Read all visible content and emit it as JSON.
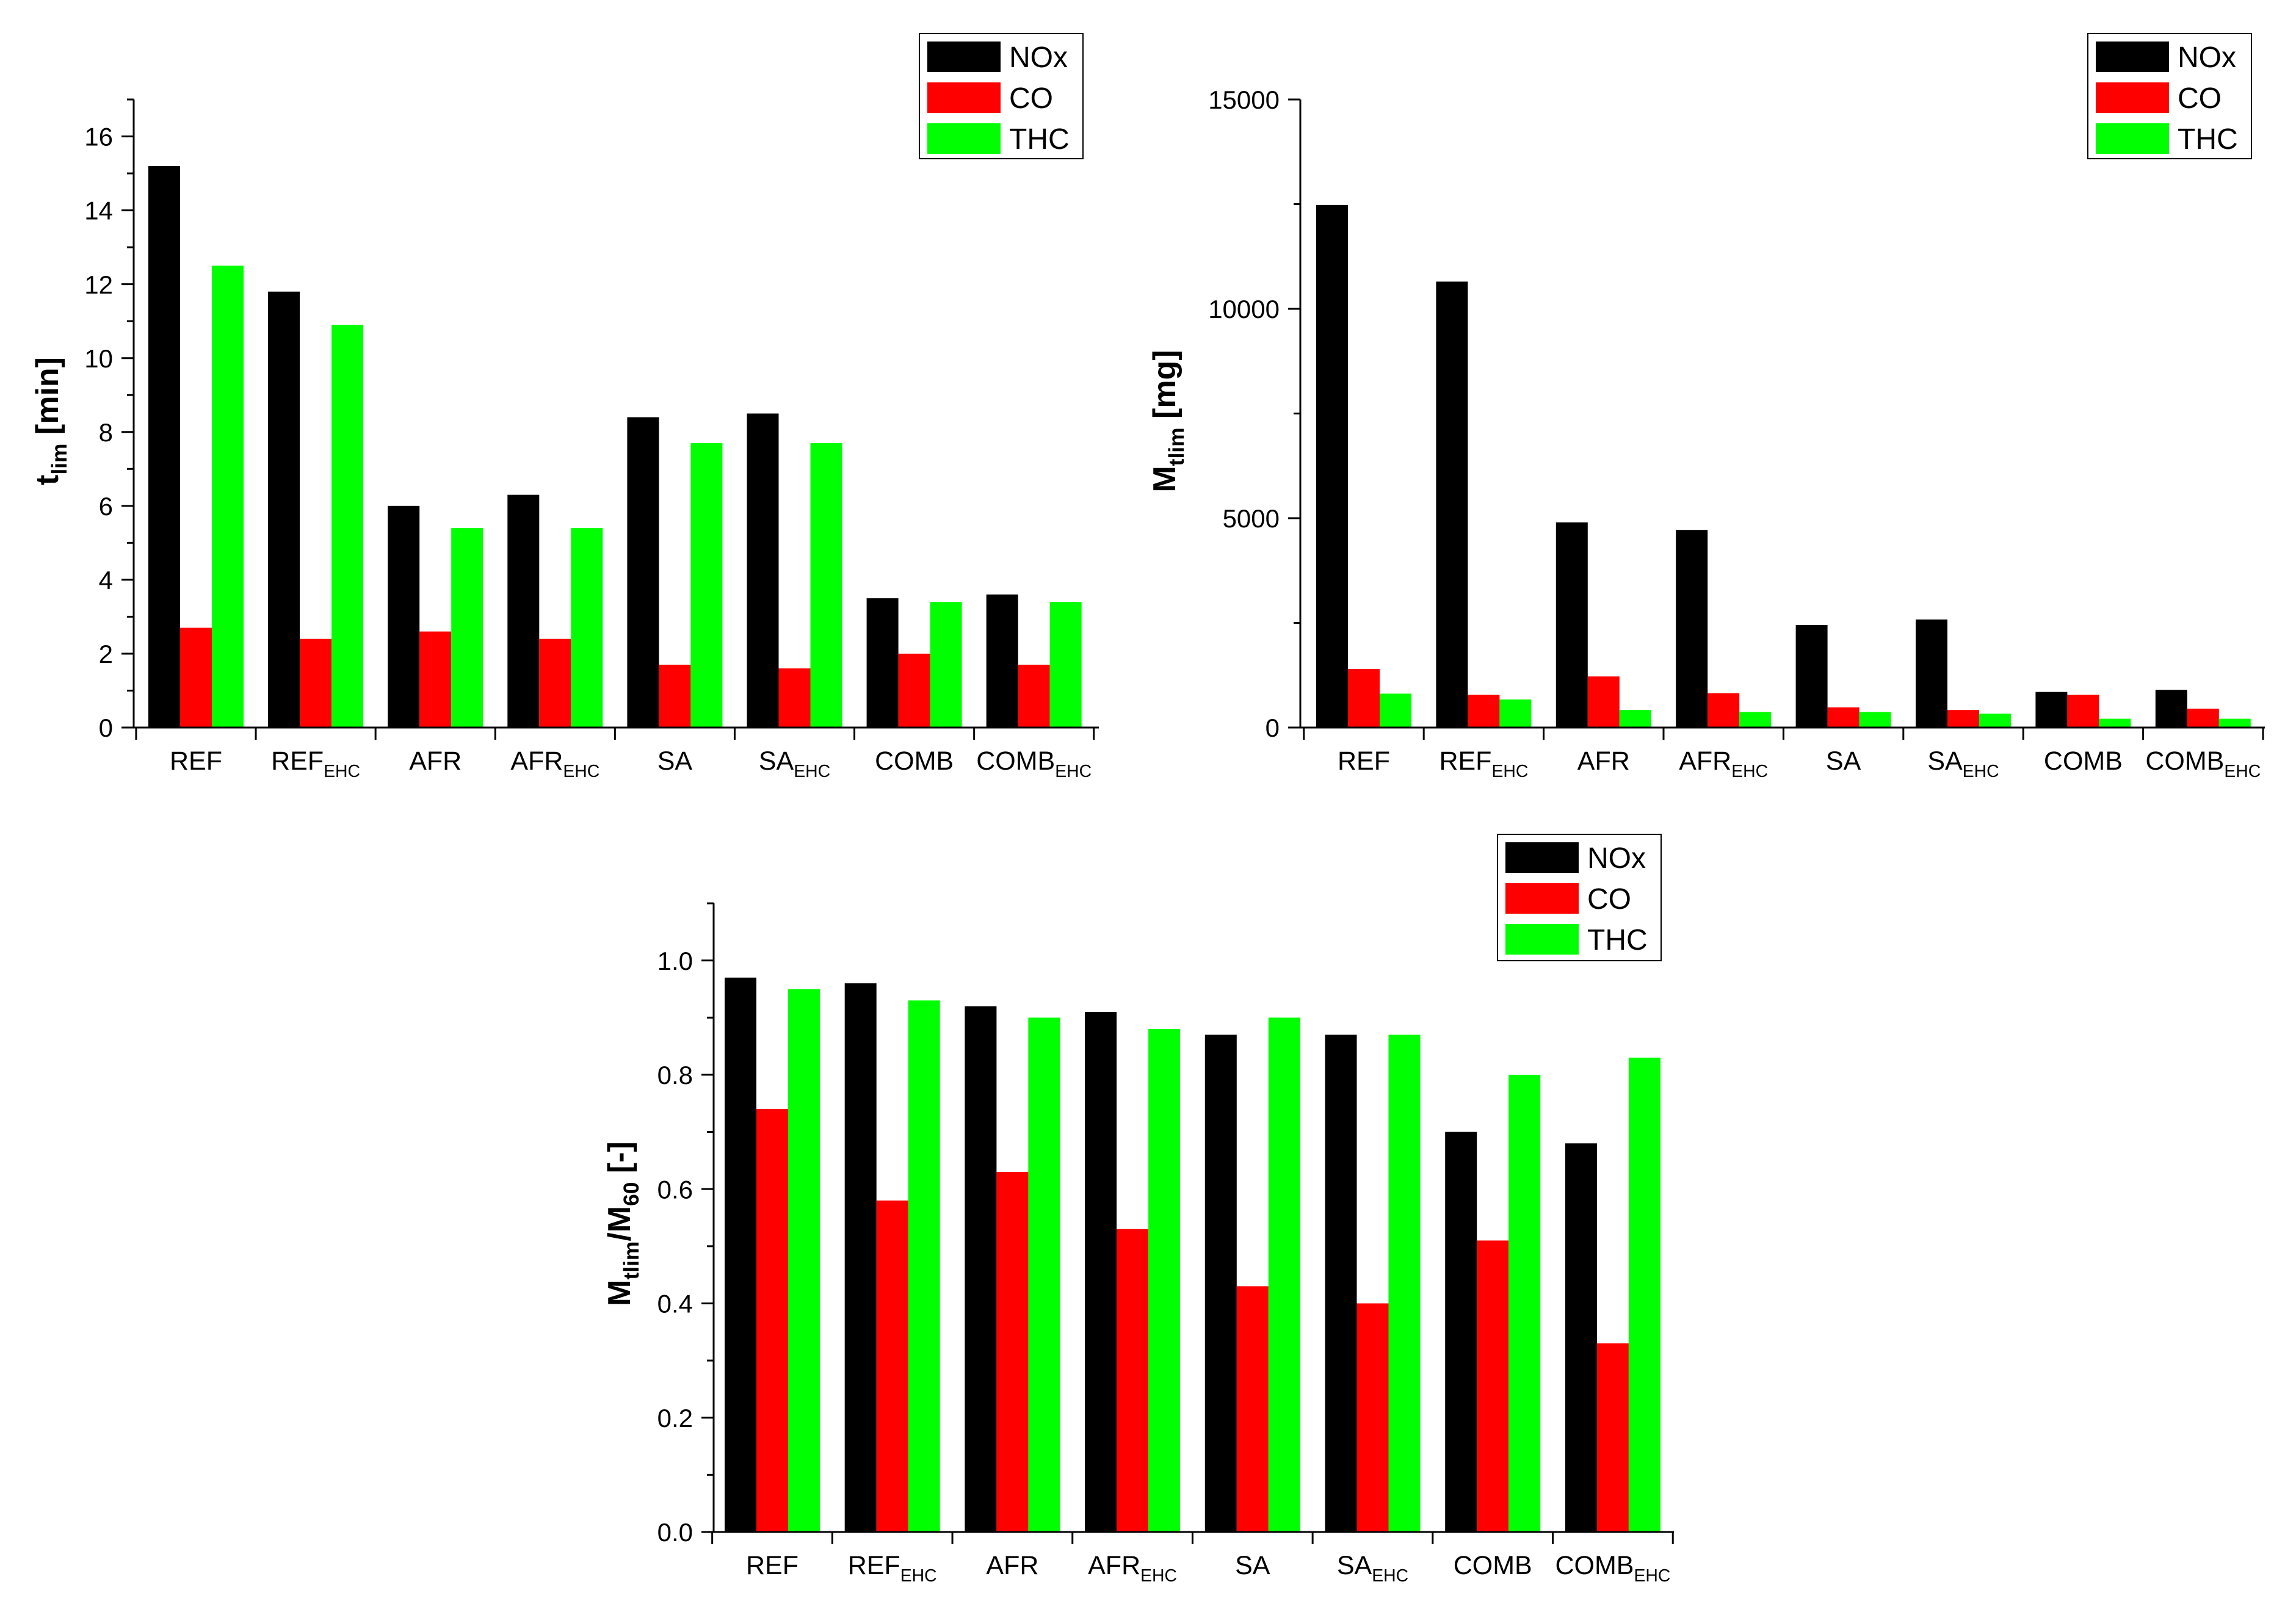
{
  "chart_data": [
    {
      "type": "bar",
      "categories": [
        {
          "base": "REF",
          "sub": ""
        },
        {
          "base": "REF",
          "sub": "EHC"
        },
        {
          "base": "AFR",
          "sub": ""
        },
        {
          "base": "AFR",
          "sub": "EHC"
        },
        {
          "base": "SA",
          "sub": ""
        },
        {
          "base": "SA",
          "sub": "EHC"
        },
        {
          "base": "COMB",
          "sub": ""
        },
        {
          "base": "COMB",
          "sub": "EHC"
        }
      ],
      "series": [
        {
          "name": "NOx",
          "color": "#000000",
          "values": [
            15.2,
            11.8,
            6.0,
            6.3,
            8.4,
            8.5,
            3.5,
            3.6
          ]
        },
        {
          "name": "CO",
          "color": "#ff0000",
          "values": [
            2.7,
            2.4,
            2.6,
            2.4,
            1.7,
            1.6,
            2.0,
            1.7
          ]
        },
        {
          "name": "THC",
          "color": "#00ff00",
          "values": [
            12.5,
            10.9,
            5.4,
            5.4,
            7.7,
            7.7,
            3.4,
            3.4
          ]
        }
      ],
      "ylabel": {
        "parts": [
          {
            "t": "t",
            "sub": false
          },
          {
            "t": "lim",
            "sub": true
          },
          {
            "t": " [min]",
            "sub": false
          }
        ]
      },
      "ylim": [
        0,
        17
      ],
      "yticks": [
        0,
        2,
        4,
        6,
        8,
        10,
        12,
        14,
        16
      ],
      "ytick_labels": [
        "0",
        "2",
        "4",
        "6",
        "8",
        "10",
        "12",
        "14",
        "16"
      ],
      "legend": "top-right",
      "grid": false
    },
    {
      "type": "bar",
      "categories": [
        {
          "base": "REF",
          "sub": ""
        },
        {
          "base": "REF",
          "sub": "EHC"
        },
        {
          "base": "AFR",
          "sub": ""
        },
        {
          "base": "AFR",
          "sub": "EHC"
        },
        {
          "base": "SA",
          "sub": ""
        },
        {
          "base": "SA",
          "sub": "EHC"
        },
        {
          "base": "COMB",
          "sub": ""
        },
        {
          "base": "COMB",
          "sub": "EHC"
        }
      ],
      "series": [
        {
          "name": "NOx",
          "color": "#000000",
          "values": [
            12480,
            10650,
            4900,
            4720,
            2450,
            2580,
            850,
            900
          ]
        },
        {
          "name": "CO",
          "color": "#ff0000",
          "values": [
            1400,
            780,
            1220,
            820,
            480,
            420,
            780,
            450
          ]
        },
        {
          "name": "THC",
          "color": "#00ff00",
          "values": [
            810,
            670,
            420,
            370,
            370,
            330,
            210,
            210
          ]
        }
      ],
      "ylabel": {
        "parts": [
          {
            "t": "M",
            "sub": false
          },
          {
            "t": "tlim",
            "sub": true
          },
          {
            "t": " [mg]",
            "sub": false
          }
        ]
      },
      "ylim": [
        0,
        15000
      ],
      "yticks": [
        0,
        5000,
        10000,
        15000
      ],
      "ytick_labels": [
        "0",
        "5000",
        "10000",
        "15000"
      ],
      "legend": "top-right",
      "grid": false
    },
    {
      "type": "bar",
      "categories": [
        {
          "base": "REF",
          "sub": ""
        },
        {
          "base": "REF",
          "sub": "EHC"
        },
        {
          "base": "AFR",
          "sub": ""
        },
        {
          "base": "AFR",
          "sub": "EHC"
        },
        {
          "base": "SA",
          "sub": ""
        },
        {
          "base": "SA",
          "sub": "EHC"
        },
        {
          "base": "COMB",
          "sub": ""
        },
        {
          "base": "COMB",
          "sub": "EHC"
        }
      ],
      "series": [
        {
          "name": "NOx",
          "color": "#000000",
          "values": [
            0.97,
            0.96,
            0.92,
            0.91,
            0.87,
            0.87,
            0.7,
            0.68
          ]
        },
        {
          "name": "CO",
          "color": "#ff0000",
          "values": [
            0.74,
            0.58,
            0.63,
            0.53,
            0.43,
            0.4,
            0.51,
            0.33
          ]
        },
        {
          "name": "THC",
          "color": "#00ff00",
          "values": [
            0.95,
            0.93,
            0.9,
            0.88,
            0.9,
            0.87,
            0.8,
            0.83
          ]
        }
      ],
      "ylabel": {
        "parts": [
          {
            "t": "M",
            "sub": false
          },
          {
            "t": "tlim",
            "sub": true
          },
          {
            "t": "/M",
            "sub": false
          },
          {
            "t": "60",
            "sub": true
          },
          {
            "t": " [-]",
            "sub": false
          }
        ]
      },
      "ylim": [
        0,
        1.1
      ],
      "yticks": [
        0,
        0.2,
        0.4,
        0.6,
        0.8,
        1.0
      ],
      "ytick_labels": [
        "0.0",
        "0.2",
        "0.4",
        "0.6",
        "0.8",
        "1.0"
      ],
      "legend": "top-right",
      "grid": false
    }
  ]
}
